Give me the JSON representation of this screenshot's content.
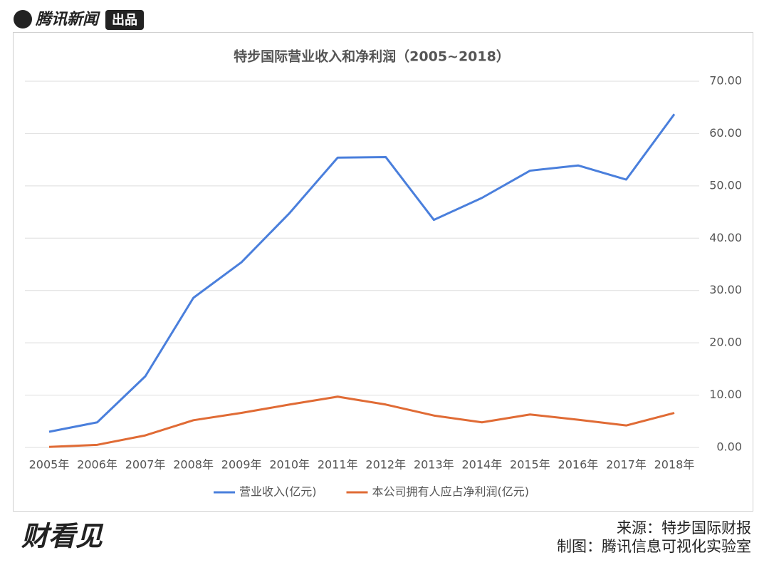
{
  "header": {
    "logo": "腾讯新闻",
    "badge": "出品"
  },
  "chart_data": {
    "type": "line",
    "title": "特步国际营业收入和净利润（2005~2018）",
    "categories": [
      "2005年",
      "2006年",
      "2007年",
      "2008年",
      "2009年",
      "2010年",
      "2011年",
      "2012年",
      "2013年",
      "2014年",
      "2015年",
      "2016年",
      "2017年",
      "2018年"
    ],
    "series": [
      {
        "name": "营业收入(亿元)",
        "color": "#4a7fdc",
        "values": [
          3.0,
          4.8,
          13.6,
          28.6,
          35.4,
          44.8,
          55.4,
          55.5,
          43.5,
          47.7,
          52.9,
          53.9,
          51.2,
          63.7
        ]
      },
      {
        "name": "本公司拥有人应占净利润(亿元)",
        "color": "#e06b35",
        "values": [
          0.1,
          0.5,
          2.3,
          5.2,
          6.6,
          8.2,
          9.7,
          8.2,
          6.1,
          4.8,
          6.3,
          5.3,
          4.2,
          6.6
        ]
      }
    ],
    "ylim": [
      0,
      70
    ],
    "yticks": [
      {
        "value": 0,
        "label": "0.00"
      },
      {
        "value": 10,
        "label": "10.00"
      },
      {
        "value": 20,
        "label": "20.00"
      },
      {
        "value": 30,
        "label": "30.00"
      },
      {
        "value": 40,
        "label": "40.00"
      },
      {
        "value": 50,
        "label": "50.00"
      },
      {
        "value": 60,
        "label": "60.00"
      },
      {
        "value": 70,
        "label": "70.00"
      }
    ],
    "y_axis_side": "right",
    "grid": true,
    "legend": "bottom"
  },
  "footer": {
    "brand": "财看见",
    "source": "来源：特步国际财报",
    "credit": "制图：腾讯信息可视化实验室"
  }
}
